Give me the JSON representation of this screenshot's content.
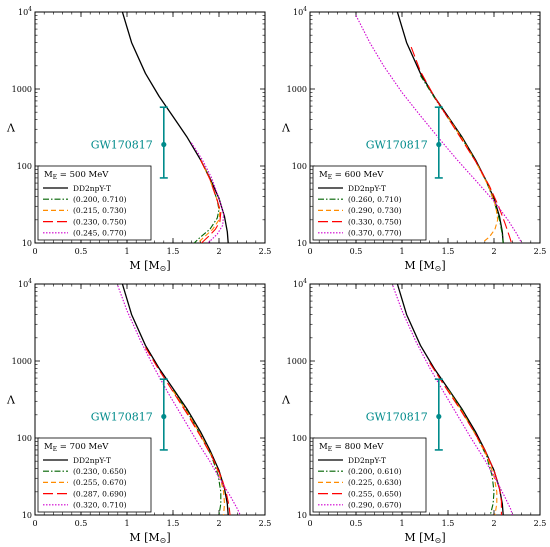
{
  "chart_data": [
    {
      "type": "line",
      "xlabel_main": "M [M",
      "xlabel_unit": "⊙",
      "xlabel_close": "]",
      "ylabel": "Λ",
      "xlim": [
        0,
        2.5
      ],
      "ylim": [
        10,
        10000
      ],
      "y_scale": "log",
      "x_ticks": [
        "0",
        "0.5",
        "1",
        "1.5",
        "2",
        "2.5"
      ],
      "y_ticks": [
        "10",
        "100",
        "1000"
      ],
      "y_top_base": "10",
      "y_top_exp": "4",
      "legend_title_main": "M",
      "legend_title_sub": "E",
      "legend_title_rest": " = 500 MeV",
      "series": [
        {
          "name": "DD2npY-T",
          "color": "#000000",
          "dash": "",
          "points": [
            [
              0.95,
              10000
            ],
            [
              1.05,
              4000
            ],
            [
              1.2,
              1600
            ],
            [
              1.35,
              800
            ],
            [
              1.5,
              440
            ],
            [
              1.65,
              240
            ],
            [
              1.8,
              120
            ],
            [
              1.9,
              70
            ],
            [
              2.0,
              38
            ],
            [
              2.06,
              22
            ],
            [
              2.09,
              14
            ],
            [
              2.1,
              10
            ]
          ]
        },
        {
          "name": "(0.200, 0.710)",
          "color": "#006400",
          "dash": "6,2,1.5,2",
          "points": [
            [
              1.8,
              120
            ],
            [
              1.9,
              68
            ],
            [
              1.98,
              36
            ],
            [
              2.0,
              27
            ],
            [
              1.98,
              21
            ],
            [
              1.9,
              15
            ],
            [
              1.8,
              12
            ],
            [
              1.73,
              10
            ]
          ]
        },
        {
          "name": "(0.215, 0.730)",
          "color": "#ff8c00",
          "dash": "5,3",
          "points": [
            [
              1.8,
              120
            ],
            [
              1.9,
              68
            ],
            [
              1.98,
              36
            ],
            [
              2.01,
              26
            ],
            [
              2.0,
              20
            ],
            [
              1.93,
              15
            ],
            [
              1.84,
              12
            ],
            [
              1.77,
              10
            ]
          ]
        },
        {
          "name": "(0.230, 0.750)",
          "color": "#ff0000",
          "dash": "10,4",
          "points": [
            [
              1.8,
              120
            ],
            [
              1.9,
              68
            ],
            [
              1.98,
              36
            ],
            [
              2.02,
              25
            ],
            [
              2.01,
              19
            ],
            [
              1.96,
              15
            ],
            [
              1.88,
              12
            ],
            [
              1.81,
              10
            ]
          ]
        },
        {
          "name": "(0.245, 0.770)",
          "color": "#d000d0",
          "dash": "1.5,1.5",
          "points": [
            [
              1.7,
              200
            ],
            [
              1.82,
              120
            ],
            [
              1.92,
              70
            ],
            [
              2.0,
              38
            ],
            [
              2.05,
              24
            ],
            [
              2.04,
              17
            ],
            [
              1.98,
              13
            ],
            [
              1.88,
              10
            ]
          ]
        }
      ],
      "gw_label": "GW170817",
      "gw_point": {
        "x": 1.4,
        "y": 190,
        "y_low": 70,
        "y_high": 580
      }
    },
    {
      "type": "line",
      "xlabel_main": "M [M",
      "xlabel_unit": "⊙",
      "xlabel_close": "]",
      "ylabel": "Λ",
      "xlim": [
        0,
        2.5
      ],
      "ylim": [
        10,
        10000
      ],
      "y_scale": "log",
      "x_ticks": [
        "0",
        "0.5",
        "1",
        "1.5",
        "2",
        "2.5"
      ],
      "y_ticks": [
        "10",
        "100",
        "1000"
      ],
      "y_top_base": "10",
      "y_top_exp": "4",
      "legend_title_main": "M",
      "legend_title_sub": "E",
      "legend_title_rest": " = 600 MeV",
      "series": [
        {
          "name": "DD2npY-T",
          "color": "#000000",
          "dash": "",
          "points": [
            [
              0.95,
              10000
            ],
            [
              1.05,
              4000
            ],
            [
              1.2,
              1600
            ],
            [
              1.35,
              800
            ],
            [
              1.5,
              440
            ],
            [
              1.65,
              240
            ],
            [
              1.8,
              120
            ],
            [
              1.9,
              70
            ],
            [
              2.0,
              38
            ],
            [
              2.06,
              22
            ],
            [
              2.09,
              14
            ],
            [
              2.1,
              10
            ]
          ]
        },
        {
          "name": "(0.260, 0.710)",
          "color": "#006400",
          "dash": "6,2,1.5,2",
          "points": [
            [
              1.2,
              1500
            ],
            [
              1.35,
              780
            ],
            [
              1.5,
              420
            ],
            [
              1.65,
              230
            ],
            [
              1.8,
              115
            ],
            [
              1.92,
              62
            ],
            [
              2.0,
              35
            ],
            [
              2.06,
              20
            ],
            [
              2.09,
              13
            ],
            [
              2.1,
              10
            ]
          ]
        },
        {
          "name": "(0.290, 0.730)",
          "color": "#ff8c00",
          "dash": "5,3",
          "points": [
            [
              1.5,
              430
            ],
            [
              1.65,
              230
            ],
            [
              1.8,
              115
            ],
            [
              1.95,
              52
            ],
            [
              2.02,
              30
            ],
            [
              2.04,
              20
            ],
            [
              2.01,
              15
            ],
            [
              1.95,
              12
            ],
            [
              1.87,
              10
            ]
          ]
        },
        {
          "name": "(0.330, 0.750)",
          "color": "#ff0000",
          "dash": "10,4",
          "points": [
            [
              1.1,
              3500
            ],
            [
              1.2,
              1700
            ],
            [
              1.35,
              800
            ],
            [
              1.5,
              420
            ],
            [
              1.65,
              220
            ],
            [
              1.8,
              115
            ],
            [
              1.95,
              55
            ],
            [
              2.05,
              30
            ],
            [
              2.12,
              18
            ],
            [
              2.17,
              12
            ],
            [
              2.19,
              10
            ]
          ]
        },
        {
          "name": "(0.370, 0.770)",
          "color": "#d000d0",
          "dash": "1.5,1.5",
          "points": [
            [
              0.5,
              9000
            ],
            [
              0.65,
              4000
            ],
            [
              0.8,
              2000
            ],
            [
              1.0,
              900
            ],
            [
              1.2,
              450
            ],
            [
              1.4,
              230
            ],
            [
              1.6,
              120
            ],
            [
              1.8,
              65
            ],
            [
              2.0,
              35
            ],
            [
              2.15,
              20
            ],
            [
              2.25,
              13
            ],
            [
              2.3,
              10
            ]
          ]
        }
      ],
      "gw_label": "GW170817",
      "gw_point": {
        "x": 1.4,
        "y": 190,
        "y_low": 70,
        "y_high": 580
      }
    },
    {
      "type": "line",
      "xlabel_main": "M [M",
      "xlabel_unit": "⊙",
      "xlabel_close": "]",
      "ylabel": "Λ",
      "xlim": [
        0,
        2.5
      ],
      "ylim": [
        10,
        10000
      ],
      "y_scale": "log",
      "x_ticks": [
        "0",
        "0.5",
        "1",
        "1.5",
        "2",
        "2.5"
      ],
      "y_ticks": [
        "10",
        "100",
        "1000"
      ],
      "y_top_base": "10",
      "y_top_exp": "4",
      "legend_title_main": "M",
      "legend_title_sub": "E",
      "legend_title_rest": " = 700 MeV",
      "series": [
        {
          "name": "DD2npY-T",
          "color": "#000000",
          "dash": "",
          "points": [
            [
              0.95,
              10000
            ],
            [
              1.05,
              4000
            ],
            [
              1.2,
              1600
            ],
            [
              1.35,
              800
            ],
            [
              1.5,
              440
            ],
            [
              1.65,
              240
            ],
            [
              1.8,
              120
            ],
            [
              1.9,
              70
            ],
            [
              2.0,
              38
            ],
            [
              2.06,
              22
            ],
            [
              2.09,
              14
            ],
            [
              2.1,
              10
            ]
          ]
        },
        {
          "name": "(0.230, 0.650)",
          "color": "#006400",
          "dash": "6,2,1.5,2",
          "points": [
            [
              1.5,
              420
            ],
            [
              1.65,
              225
            ],
            [
              1.8,
              110
            ],
            [
              1.92,
              58
            ],
            [
              1.99,
              33
            ],
            [
              2.02,
              20
            ],
            [
              2.02,
              14
            ],
            [
              2.0,
              10
            ]
          ]
        },
        {
          "name": "(0.255, 0.670)",
          "color": "#ff8c00",
          "dash": "5,3",
          "points": [
            [
              1.5,
              410
            ],
            [
              1.65,
              220
            ],
            [
              1.8,
              110
            ],
            [
              1.93,
              56
            ],
            [
              2.01,
              32
            ],
            [
              2.05,
              20
            ],
            [
              2.06,
              14
            ],
            [
              2.05,
              10
            ]
          ]
        },
        {
          "name": "(0.287, 0.690)",
          "color": "#ff0000",
          "dash": "10,4",
          "points": [
            [
              1.2,
              1500
            ],
            [
              1.35,
              760
            ],
            [
              1.5,
              400
            ],
            [
              1.65,
              210
            ],
            [
              1.8,
              105
            ],
            [
              1.93,
              55
            ],
            [
              2.03,
              30
            ],
            [
              2.08,
              19
            ],
            [
              2.11,
              13
            ],
            [
              2.12,
              10
            ]
          ]
        },
        {
          "name": "(0.320, 0.710)",
          "color": "#d000d0",
          "dash": "1.5,1.5",
          "points": [
            [
              0.9,
              9500
            ],
            [
              1.0,
              4500
            ],
            [
              1.15,
              1800
            ],
            [
              1.3,
              800
            ],
            [
              1.45,
              380
            ],
            [
              1.6,
              190
            ],
            [
              1.75,
              95
            ],
            [
              1.9,
              50
            ],
            [
              2.02,
              28
            ],
            [
              2.13,
              17
            ],
            [
              2.2,
              12
            ],
            [
              2.23,
              10
            ]
          ]
        }
      ],
      "gw_label": "GW170817",
      "gw_point": {
        "x": 1.4,
        "y": 190,
        "y_low": 70,
        "y_high": 580
      }
    },
    {
      "type": "line",
      "xlabel_main": "M [M",
      "xlabel_unit": "⊙",
      "xlabel_close": "]",
      "ylabel": "Λ",
      "xlim": [
        0,
        2.5
      ],
      "ylim": [
        10,
        10000
      ],
      "y_scale": "log",
      "x_ticks": [
        "0",
        "0.5",
        "1",
        "1.5",
        "2",
        "2.5"
      ],
      "y_ticks": [
        "10",
        "100",
        "1000"
      ],
      "y_top_base": "10",
      "y_top_exp": "4",
      "legend_title_main": "M",
      "legend_title_sub": "E",
      "legend_title_rest": " = 800 MeV",
      "series": [
        {
          "name": "DD2npY-T",
          "color": "#000000",
          "dash": "",
          "points": [
            [
              0.95,
              10000
            ],
            [
              1.05,
              4000
            ],
            [
              1.2,
              1600
            ],
            [
              1.35,
              800
            ],
            [
              1.5,
              440
            ],
            [
              1.65,
              240
            ],
            [
              1.8,
              120
            ],
            [
              1.9,
              70
            ],
            [
              2.0,
              38
            ],
            [
              2.06,
              22
            ],
            [
              2.09,
              14
            ],
            [
              2.1,
              10
            ]
          ]
        },
        {
          "name": "(0.200, 0.610)",
          "color": "#006400",
          "dash": "6,2,1.5,2",
          "points": [
            [
              1.5,
              430
            ],
            [
              1.65,
              230
            ],
            [
              1.8,
              112
            ],
            [
              1.92,
              58
            ],
            [
              1.98,
              32
            ],
            [
              2.0,
              20
            ],
            [
              1.99,
              14
            ],
            [
              1.96,
              10
            ]
          ]
        },
        {
          "name": "(0.225, 0.630)",
          "color": "#ff8c00",
          "dash": "5,3",
          "points": [
            [
              1.5,
              420
            ],
            [
              1.65,
              225
            ],
            [
              1.8,
              110
            ],
            [
              1.93,
              56
            ],
            [
              2.0,
              32
            ],
            [
              2.03,
              20
            ],
            [
              2.03,
              14
            ],
            [
              2.01,
              10
            ]
          ]
        },
        {
          "name": "(0.255, 0.650)",
          "color": "#ff0000",
          "dash": "10,4",
          "points": [
            [
              1.3,
              950
            ],
            [
              1.45,
              500
            ],
            [
              1.6,
              270
            ],
            [
              1.75,
              140
            ],
            [
              1.9,
              70
            ],
            [
              2.0,
              38
            ],
            [
              2.06,
              22
            ],
            [
              2.08,
              15
            ],
            [
              2.08,
              10
            ]
          ]
        },
        {
          "name": "(0.290, 0.670)",
          "color": "#d000d0",
          "dash": "1.5,1.5",
          "points": [
            [
              0.9,
              9500
            ],
            [
              1.0,
              4500
            ],
            [
              1.15,
              1800
            ],
            [
              1.3,
              820
            ],
            [
              1.45,
              400
            ],
            [
              1.6,
              200
            ],
            [
              1.75,
              100
            ],
            [
              1.9,
              52
            ],
            [
              2.02,
              29
            ],
            [
              2.12,
              17
            ],
            [
              2.18,
              12
            ],
            [
              2.2,
              10
            ]
          ]
        }
      ],
      "gw_label": "GW170817",
      "gw_point": {
        "x": 1.4,
        "y": 190,
        "y_low": 70,
        "y_high": 580
      }
    }
  ]
}
